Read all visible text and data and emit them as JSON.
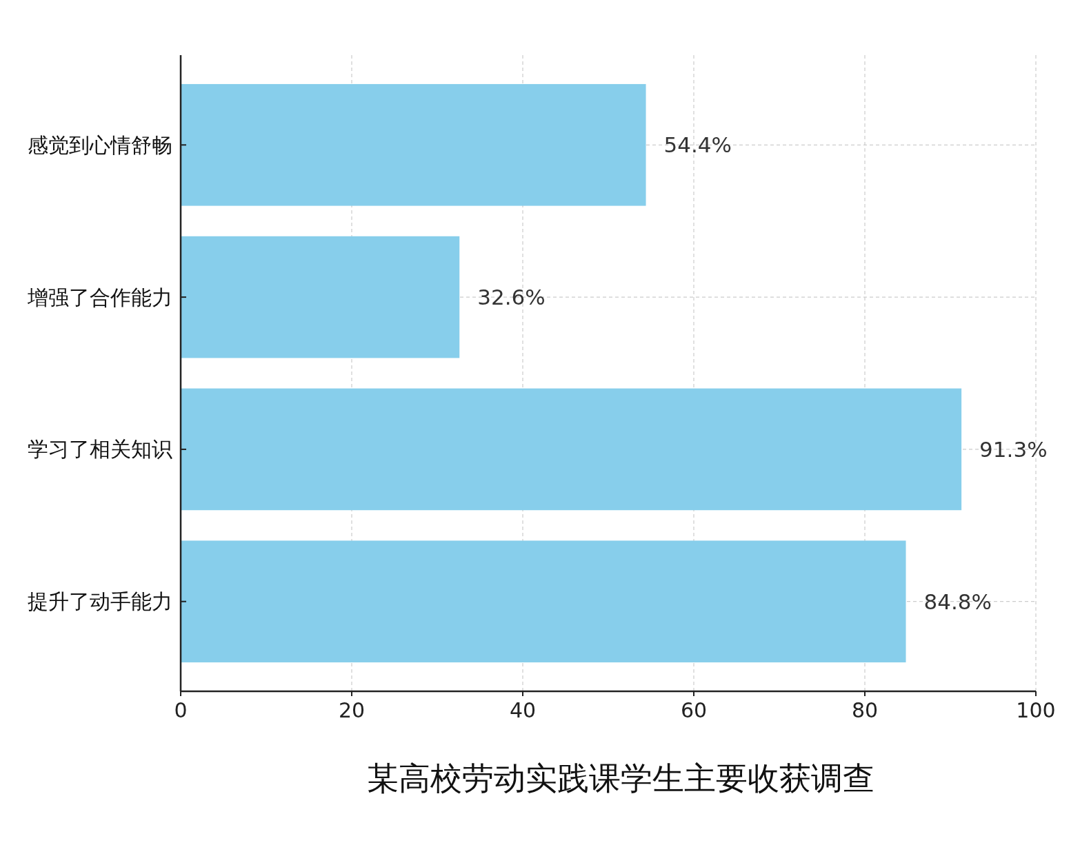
{
  "chart_data": {
    "type": "bar",
    "orientation": "horizontal",
    "title": "某高校劳动实践课学生主要收获调查",
    "categories": [
      "感觉到心情舒畅",
      "增强了合作能力",
      "学习了相关知识",
      "提升了动手能力"
    ],
    "values": [
      54.4,
      32.6,
      91.3,
      84.8
    ],
    "value_labels": [
      "54.4%",
      "32.6%",
      "91.3%",
      "84.8%"
    ],
    "color": "#87ceeb",
    "xlim": [
      0,
      100
    ],
    "xticks": [
      0,
      20,
      40,
      60,
      80,
      100
    ],
    "grid": true
  }
}
